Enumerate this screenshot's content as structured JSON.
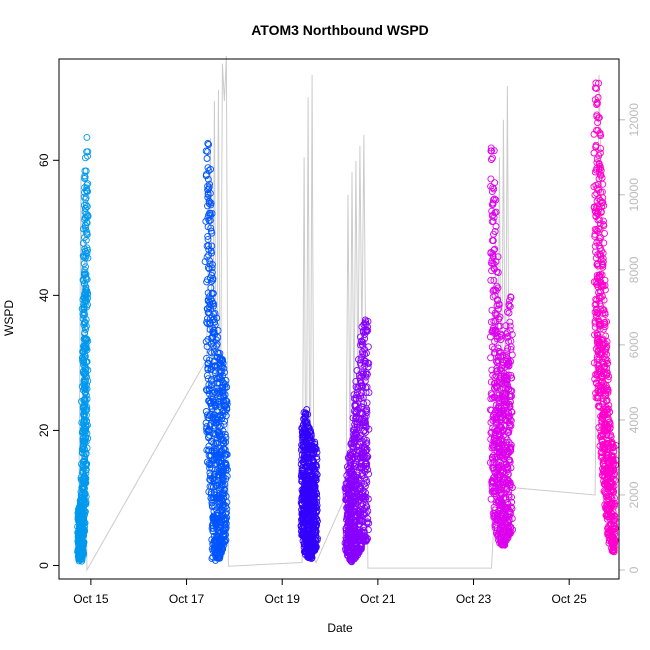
{
  "chart_data": {
    "type": "scatter",
    "title": "ATOM3 Northbound WSPD",
    "xlabel": "Date",
    "ylabel": "WSPD",
    "x_tick_labels": [
      "Oct 15",
      "Oct 17",
      "Oct 19",
      "Oct 21",
      "Oct 23",
      "Oct 25"
    ],
    "x_tick_values": [
      "2013-10-15",
      "2013-10-17",
      "2013-10-19",
      "2013-10-21",
      "2013-10-23",
      "2013-10-25"
    ],
    "xlim": [
      "2013-10-14T08:00",
      "2013-10-26T01:00"
    ],
    "ylim": [
      -2,
      75
    ],
    "y_ticks": [
      0,
      20,
      40,
      60
    ],
    "y2_ticks": [
      0,
      2000,
      4000,
      6000,
      8000,
      10000,
      12000
    ],
    "y2lim": [
      -240,
      13620
    ],
    "grid": false,
    "series": [
      {
        "type": "scatter",
        "marker": "open-circle",
        "segments": [
          {
            "start": "2013-10-14T18:00",
            "end": "2013-10-14T22:00",
            "color": "#0099ee",
            "profile": [
              [
                0.0,
                2,
                9
              ],
              [
                0.1,
                1,
                9
              ],
              [
                0.2,
                0.5,
                8
              ],
              [
                0.3,
                2,
                10
              ],
              [
                0.4,
                1,
                12
              ],
              [
                0.5,
                2,
                30
              ],
              [
                0.6,
                5,
                45
              ],
              [
                0.7,
                8,
                55
              ],
              [
                0.8,
                10,
                58
              ],
              [
                0.9,
                15,
                62
              ],
              [
                1.0,
                30,
                67
              ]
            ]
          },
          {
            "start": "2013-10-17T10:00",
            "end": "2013-10-17T20:00",
            "color": "#0055ff",
            "profile": [
              [
                0.0,
                20,
                64
              ],
              [
                0.1,
                15,
                64
              ],
              [
                0.2,
                10,
                55
              ],
              [
                0.3,
                1,
                45
              ],
              [
                0.45,
                0.5,
                38
              ],
              [
                0.6,
                1,
                32
              ],
              [
                0.75,
                2,
                31
              ],
              [
                0.9,
                3,
                30
              ],
              [
                1.0,
                5,
                29
              ]
            ]
          },
          {
            "start": "2013-10-19T10:00",
            "end": "2013-10-19T17:00",
            "color": "#3300ff",
            "profile": [
              [
                0.0,
                5,
                20
              ],
              [
                0.2,
                2,
                24
              ],
              [
                0.4,
                1,
                22
              ],
              [
                0.6,
                1,
                20
              ],
              [
                0.8,
                2,
                19
              ],
              [
                1.0,
                3,
                18
              ]
            ]
          },
          {
            "start": "2013-10-20T08:00",
            "end": "2013-10-20T19:00",
            "color": "#8800ff",
            "profile": [
              [
                0.0,
                2,
                12
              ],
              [
                0.2,
                0.5,
                18
              ],
              [
                0.4,
                1,
                25
              ],
              [
                0.6,
                2,
                32
              ],
              [
                0.8,
                3,
                36
              ],
              [
                1.0,
                4,
                38
              ]
            ]
          },
          {
            "start": "2013-10-23T09:00",
            "end": "2013-10-23T19:00",
            "color": "#dd00ee",
            "profile": [
              [
                0.0,
                10,
                63
              ],
              [
                0.1,
                8,
                63
              ],
              [
                0.2,
                5,
                55
              ],
              [
                0.35,
                4,
                40
              ],
              [
                0.5,
                3,
                32
              ],
              [
                0.65,
                3,
                30
              ],
              [
                0.8,
                4,
                38
              ],
              [
                1.0,
                5,
                41
              ]
            ]
          },
          {
            "start": "2013-10-25T13:00",
            "end": "2013-10-25T23:00",
            "color": "#ff00cc",
            "profile": [
              [
                0.0,
                24,
                73
              ],
              [
                0.15,
                25,
                72
              ],
              [
                0.3,
                18,
                60
              ],
              [
                0.45,
                12,
                50
              ],
              [
                0.6,
                6,
                32
              ],
              [
                0.75,
                3,
                22
              ],
              [
                0.9,
                2,
                19
              ],
              [
                1.0,
                2,
                18
              ]
            ]
          }
        ]
      },
      {
        "type": "line",
        "axis": "right",
        "color": "#cccccc",
        "points": [
          [
            "2013-10-14T18:00",
            1500
          ],
          [
            "2013-10-14T19:00",
            10500
          ],
          [
            "2013-10-14T20:00",
            2200
          ],
          [
            "2013-10-14T21:00",
            9500
          ],
          [
            "2013-10-14T22:00",
            0
          ],
          [
            "2013-10-17T10:00",
            5600
          ],
          [
            "2013-10-17T12:00",
            11500
          ],
          [
            "2013-10-17T13:00",
            3500
          ],
          [
            "2013-10-17T14:00",
            12500
          ],
          [
            "2013-10-17T15:00",
            2500
          ],
          [
            "2013-10-17T16:00",
            12800
          ],
          [
            "2013-10-17T17:00",
            3000
          ],
          [
            "2013-10-17T18:00",
            13500
          ],
          [
            "2013-10-17T19:00",
            12500
          ],
          [
            "2013-10-17T20:00",
            13700
          ],
          [
            "2013-10-17T21:00",
            100
          ],
          [
            "2013-10-19T10:00",
            200
          ],
          [
            "2013-10-19T11:00",
            11000
          ],
          [
            "2013-10-19T12:00",
            400
          ],
          [
            "2013-10-19T13:00",
            12600
          ],
          [
            "2013-10-19T14:00",
            500
          ],
          [
            "2013-10-19T15:00",
            13200
          ],
          [
            "2013-10-19T16:00",
            300
          ],
          [
            "2013-10-19T17:00",
            200
          ],
          [
            "2013-10-20T08:00",
            2000
          ],
          [
            "2013-10-20T09:00",
            10000
          ],
          [
            "2013-10-20T10:00",
            3000
          ],
          [
            "2013-10-20T11:00",
            10600
          ],
          [
            "2013-10-20T12:00",
            4000
          ],
          [
            "2013-10-20T13:00",
            10900
          ],
          [
            "2013-10-20T14:00",
            5000
          ],
          [
            "2013-10-20T15:00",
            11300
          ],
          [
            "2013-10-20T16:00",
            6000
          ],
          [
            "2013-10-20T17:00",
            11600
          ],
          [
            "2013-10-20T18:00",
            5000
          ],
          [
            "2013-10-20T19:00",
            50
          ],
          [
            "2013-10-23T09:00",
            50
          ],
          [
            "2013-10-23T10:00",
            1000
          ],
          [
            "2013-10-23T11:00",
            9000
          ],
          [
            "2013-10-23T12:00",
            2000
          ],
          [
            "2013-10-23T13:00",
            11000
          ],
          [
            "2013-10-23T14:00",
            3000
          ],
          [
            "2013-10-23T15:00",
            12000
          ],
          [
            "2013-10-23T16:00",
            4000
          ],
          [
            "2013-10-23T17:00",
            12900
          ],
          [
            "2013-10-23T18:00",
            3000
          ],
          [
            "2013-10-23T19:00",
            2200
          ],
          [
            "2013-10-25T13:00",
            2000
          ],
          [
            "2013-10-25T15:00",
            13200
          ],
          [
            "2013-10-25T17:00",
            8000
          ],
          [
            "2013-10-25T19:00",
            6000
          ],
          [
            "2013-10-25T21:00",
            3000
          ],
          [
            "2013-10-25T23:00",
            2500
          ]
        ]
      }
    ]
  }
}
